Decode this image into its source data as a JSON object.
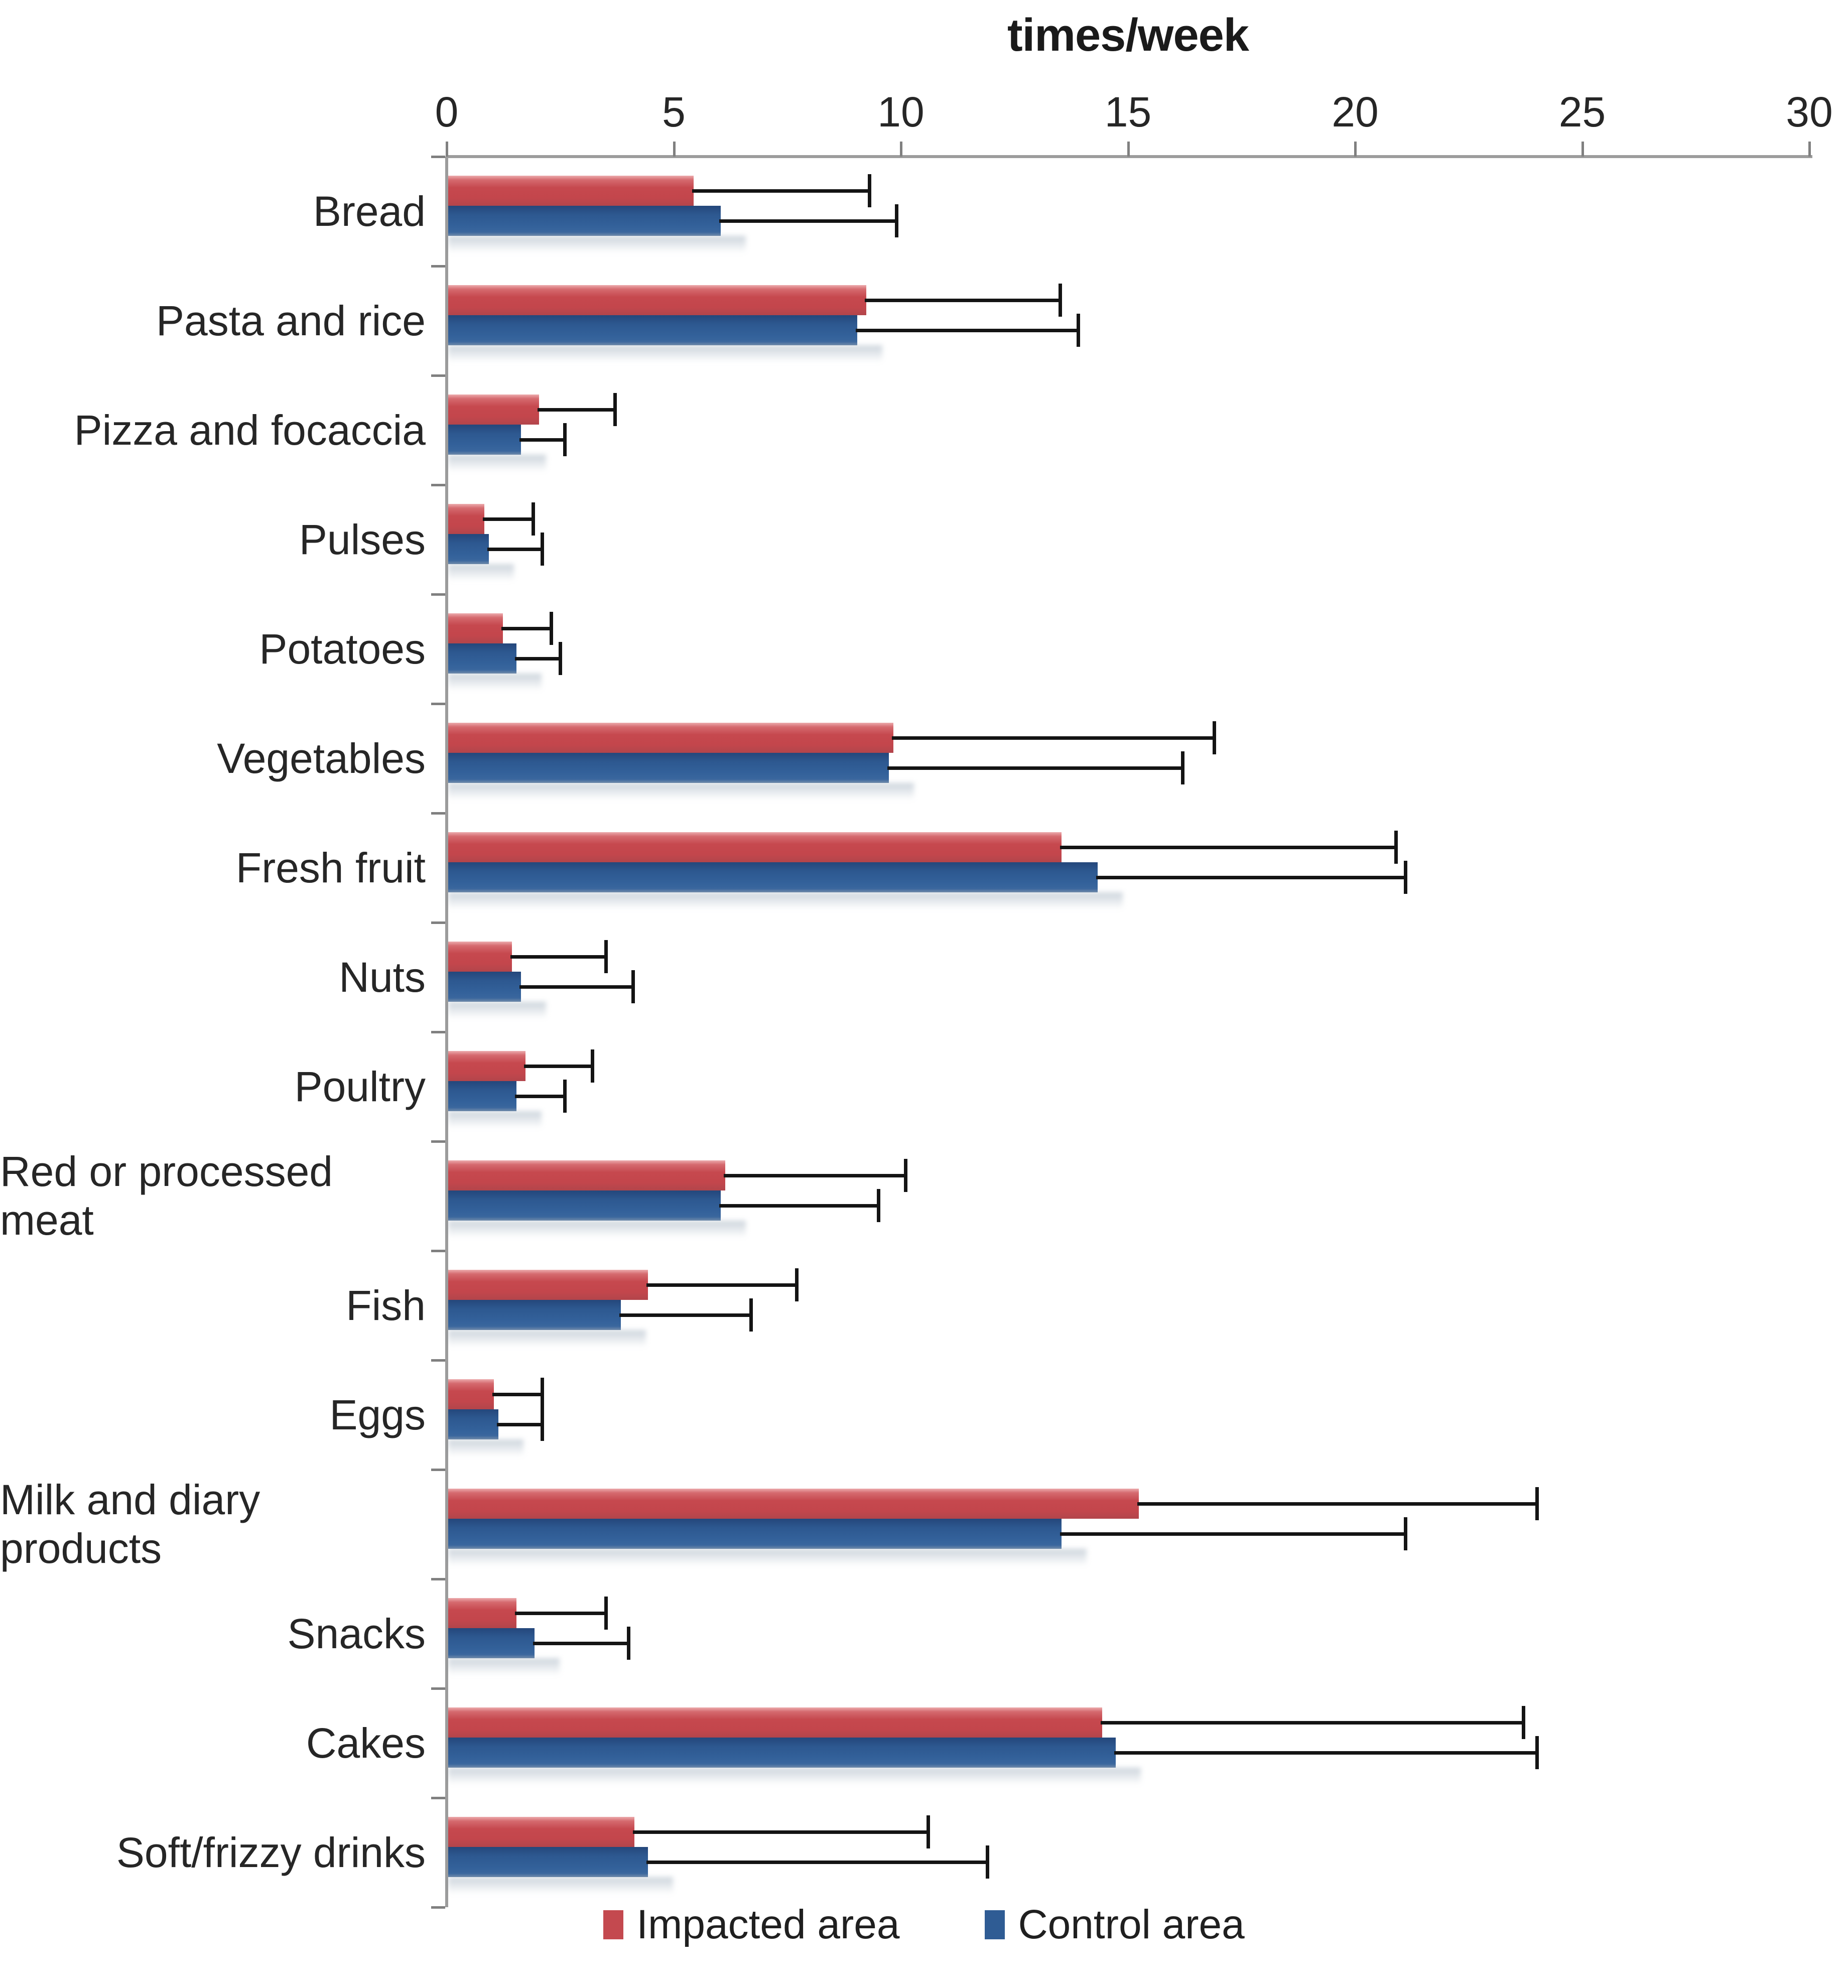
{
  "chart_data": {
    "type": "bar",
    "orientation": "horizontal-grouped",
    "title": "times/week",
    "xlabel": "times/week",
    "ylabel": "",
    "x_axis": {
      "min": 0,
      "max": 30,
      "ticks": [
        0,
        5,
        10,
        15,
        20,
        25,
        30
      ],
      "position": "top"
    },
    "grid": false,
    "legend_position": "bottom",
    "error_bars": "plus-direction-only",
    "categories": [
      "Bread",
      "Pasta and rice",
      "Pizza and focaccia",
      "Pulses",
      "Potatoes",
      "Vegetables",
      "Fresh fruit",
      "Nuts",
      "Poultry",
      "Red or processed meat",
      "Fish",
      "Eggs",
      "Milk and diary products",
      "Snacks",
      "Cakes",
      "Soft/frizzy drinks"
    ],
    "series": [
      {
        "name": "Impacted area",
        "color": "#C4494F",
        "values": [
          5.4,
          9.2,
          2.0,
          0.8,
          1.2,
          9.8,
          13.5,
          1.4,
          1.7,
          6.1,
          4.4,
          1.0,
          15.2,
          1.5,
          14.4,
          4.1
        ],
        "error_upper": [
          9.3,
          13.5,
          3.7,
          1.9,
          2.3,
          16.9,
          20.9,
          3.5,
          3.2,
          10.1,
          7.7,
          2.1,
          24.0,
          3.5,
          23.7,
          10.6
        ]
      },
      {
        "name": "Control area",
        "color": "#2F5C94",
        "values": [
          6.0,
          9.0,
          1.6,
          0.9,
          1.5,
          9.7,
          14.3,
          1.6,
          1.5,
          6.0,
          3.8,
          1.1,
          13.5,
          1.9,
          14.7,
          4.4
        ],
        "error_upper": [
          9.9,
          13.9,
          2.6,
          2.1,
          2.5,
          16.2,
          21.1,
          4.1,
          2.6,
          9.5,
          6.7,
          2.1,
          21.1,
          4.0,
          24.0,
          11.9
        ]
      }
    ],
    "legend": [
      "Impacted area",
      "Control area"
    ]
  }
}
